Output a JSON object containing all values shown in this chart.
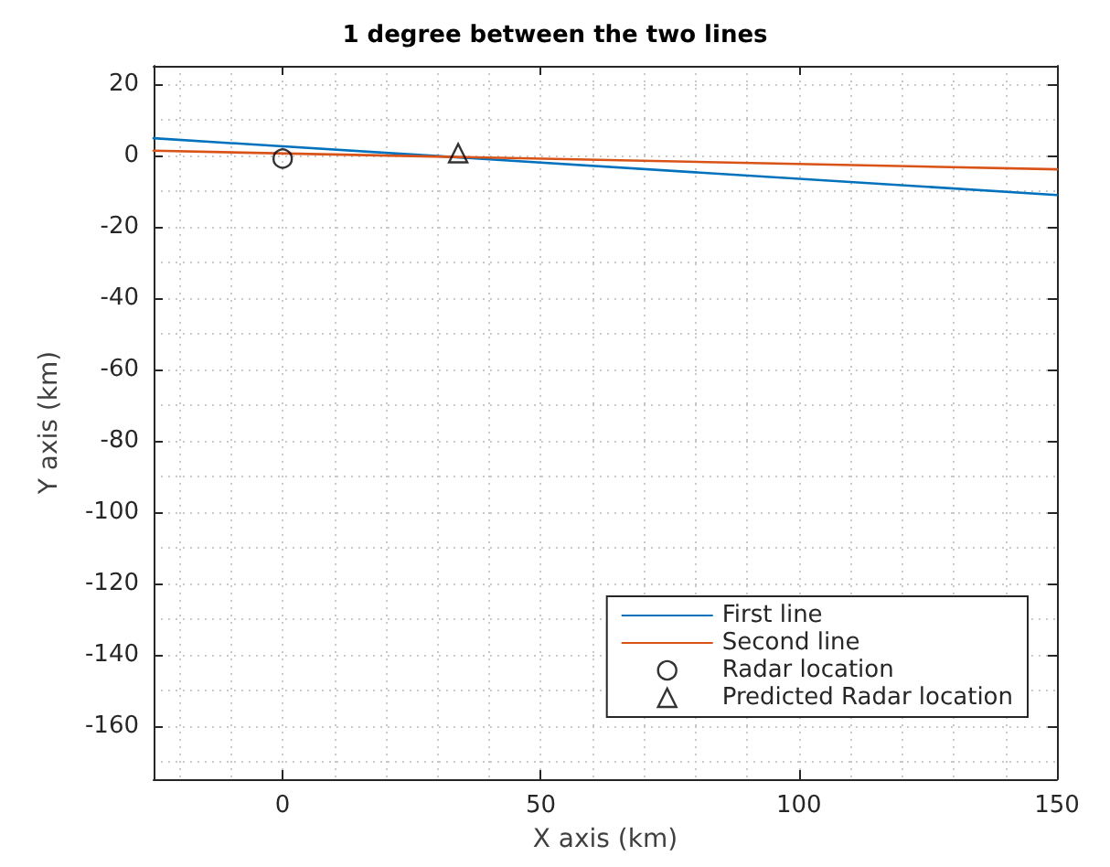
{
  "chart_data": {
    "type": "line",
    "title": "1 degree between the two lines",
    "xlabel": "X axis (km)",
    "ylabel": "Y axis (km)",
    "xlim": [
      -25,
      150
    ],
    "xticks": [
      0,
      50,
      100,
      150
    ],
    "ylim": [
      -175,
      25
    ],
    "yticks": [
      -160,
      -140,
      -120,
      -100,
      -80,
      -60,
      -40,
      -20,
      0,
      20
    ],
    "grid": true,
    "legend": "bottom right",
    "marker": "none",
    "line_style": "solid",
    "series": [
      {
        "name": "First line",
        "color": "#0072bd",
        "x": [
          -25,
          150
        ],
        "values": [
          4.7,
          -11.2
        ]
      },
      {
        "name": "Second line",
        "color": "#d95319",
        "x": [
          -25,
          150
        ],
        "values": [
          1.2,
          -4.0
        ]
      },
      {
        "name": "Radar location",
        "type": "scatter",
        "marker": "circle",
        "color": "#000000",
        "x": [
          0
        ],
        "values": [
          -1
        ]
      },
      {
        "name": "Predicted Radar location",
        "type": "scatter",
        "marker": "triangle",
        "color": "#000000",
        "x": [
          34
        ],
        "values": [
          0.5
        ]
      }
    ]
  }
}
